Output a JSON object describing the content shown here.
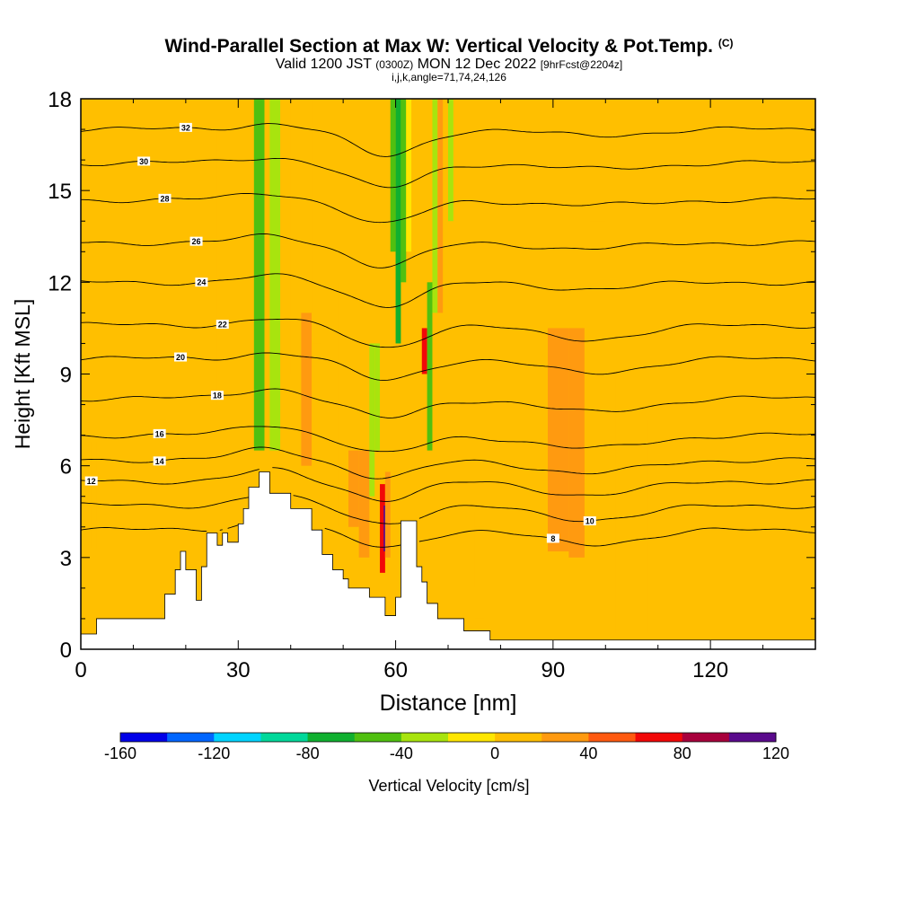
{
  "title": {
    "main": "Wind-Parallel Section at Max W: Vertical Velocity & Pot.Temp.",
    "copyright": "(C)",
    "valid_prefix": "Valid 1200 JST",
    "valid_utc": "(0300Z)",
    "valid_date": "MON 12 Dec 2022",
    "forecast": "[9hrFcst@2204z]",
    "indices": "i,j,k,angle=71,74,24,126"
  },
  "chart_data": {
    "type": "heatmap",
    "xlabel": "Distance [nm]",
    "ylabel": "Height [Kft MSL]",
    "xlim": [
      0,
      140
    ],
    "ylim": [
      0,
      18
    ],
    "x_ticks": [
      "0",
      "30",
      "60",
      "90",
      "120"
    ],
    "y_ticks": [
      "0",
      "3",
      "6",
      "9",
      "12",
      "15",
      "18"
    ],
    "colorbar": {
      "label": "Vertical Velocity [cm/s]",
      "tick_labels": [
        "-160",
        "-120",
        "-80",
        "-40",
        "0",
        "40",
        "80",
        "120"
      ],
      "tick_values": [
        -160,
        -120,
        -80,
        -40,
        0,
        40,
        80,
        120
      ],
      "min": -160,
      "max": 120,
      "colors": [
        "#0000e8",
        "#0066ff",
        "#00d4ff",
        "#00d89a",
        "#10b030",
        "#50c010",
        "#a8e40e",
        "#ffe600",
        "#ffbf00",
        "#ff9a10",
        "#ff5a10",
        "#f20808",
        "#a8003c",
        "#5a0a8c"
      ]
    },
    "background_value": 0,
    "velocity_cells": [
      {
        "x": [
          2,
          3
        ],
        "y": [
          3.3,
          6.8
        ],
        "value": 15
      },
      {
        "x": [
          10,
          13
        ],
        "y": [
          1,
          18
        ],
        "value": 15
      },
      {
        "x": [
          19,
          23
        ],
        "y": [
          5.5,
          18
        ],
        "value": 15
      },
      {
        "x": [
          24,
          26
        ],
        "y": [
          8,
          17
        ],
        "value": 15
      },
      {
        "x": [
          31,
          33
        ],
        "y": [
          6.5,
          18
        ],
        "value": 15
      },
      {
        "x": [
          33,
          35
        ],
        "y": [
          6.5,
          18
        ],
        "value": -45
      },
      {
        "x": [
          36,
          38
        ],
        "y": [
          6.5,
          18
        ],
        "value": -35
      },
      {
        "x": [
          38,
          40
        ],
        "y": [
          9,
          18
        ],
        "value": 15
      },
      {
        "x": [
          42,
          44
        ],
        "y": [
          6,
          11
        ],
        "value": 30
      },
      {
        "x": [
          44,
          46
        ],
        "y": [
          10,
          18
        ],
        "value": 15
      },
      {
        "x": [
          49,
          51
        ],
        "y": [
          4,
          12
        ],
        "value": 15
      },
      {
        "x": [
          51,
          53
        ],
        "y": [
          4,
          6.5
        ],
        "value": 30
      },
      {
        "x": [
          53,
          55
        ],
        "y": [
          3,
          6.5
        ],
        "value": 35
      },
      {
        "x": [
          55,
          56
        ],
        "y": [
          5,
          10
        ],
        "value": -30
      },
      {
        "x": [
          56,
          57
        ],
        "y": [
          6.5,
          10
        ],
        "value": -40
      },
      {
        "x": [
          57,
          58
        ],
        "y": [
          2.5,
          5.4
        ],
        "value": 75
      },
      {
        "x": [
          57.7,
          58.3
        ],
        "y": [
          3.2,
          4.7
        ],
        "value": 100
      },
      {
        "x": [
          58,
          59
        ],
        "y": [
          3,
          5.8
        ],
        "value": 30
      },
      {
        "x": [
          60,
          61
        ],
        "y": [
          10,
          18
        ],
        "value": -80
      },
      {
        "x": [
          59,
          60
        ],
        "y": [
          13,
          18
        ],
        "value": -45
      },
      {
        "x": [
          61,
          62
        ],
        "y": [
          12,
          18
        ],
        "value": -45
      },
      {
        "x": [
          62,
          63
        ],
        "y": [
          13,
          18
        ],
        "value": -20
      },
      {
        "x": [
          65,
          66
        ],
        "y": [
          9,
          10.5
        ],
        "value": 60
      },
      {
        "x": [
          66,
          67
        ],
        "y": [
          6.5,
          12
        ],
        "value": -50
      },
      {
        "x": [
          67,
          68
        ],
        "y": [
          11,
          18
        ],
        "value": -40
      },
      {
        "x": [
          68,
          69
        ],
        "y": [
          11,
          18
        ],
        "value": 25
      },
      {
        "x": [
          70,
          71
        ],
        "y": [
          14,
          18
        ],
        "value": -30
      },
      {
        "x": [
          73,
          75
        ],
        "y": [
          2,
          4.5
        ],
        "value": 15
      },
      {
        "x": [
          75,
          77
        ],
        "y": [
          1,
          4
        ],
        "value": 15
      },
      {
        "x": [
          89,
          93
        ],
        "y": [
          3.2,
          10.5
        ],
        "value": 20
      },
      {
        "x": [
          93,
          96
        ],
        "y": [
          3,
          10.5
        ],
        "value": 25
      },
      {
        "x": [
          96,
          99
        ],
        "y": [
          6.5,
          11
        ],
        "value": 15
      },
      {
        "x": [
          97,
          100
        ],
        "y": [
          14,
          18
        ],
        "value": 15
      },
      {
        "x": [
          102,
          104
        ],
        "y": [
          0.5,
          9
        ],
        "value": 15
      },
      {
        "x": [
          106,
          108
        ],
        "y": [
          0.5,
          7.5
        ],
        "value": 15
      },
      {
        "x": [
          110,
          113
        ],
        "y": [
          0.5,
          6
        ],
        "value": 15
      },
      {
        "x": [
          116,
          118
        ],
        "y": [
          0.5,
          8
        ],
        "value": 15
      },
      {
        "x": [
          122,
          125
        ],
        "y": [
          0.5,
          6
        ],
        "value": 15
      },
      {
        "x": [
          128,
          130
        ],
        "y": [
          6.5,
          10
        ],
        "value": 15
      }
    ],
    "theta_contours": [
      {
        "level": 8,
        "height": 3.9,
        "label_x": 90
      },
      {
        "level": 10,
        "height": 4.7,
        "label_x": 97
      },
      {
        "level": 12,
        "height": 5.5,
        "label_x": 2
      },
      {
        "level": 14,
        "height": 6.2,
        "label_x": 15
      },
      {
        "level": 16,
        "height": 7.0,
        "label_x": 15
      },
      {
        "level": 18,
        "height": 8.2,
        "label_x": 26
      },
      {
        "level": 20,
        "height": 9.5,
        "label_x": 19
      },
      {
        "level": 22,
        "height": 10.6,
        "label_x": 27
      },
      {
        "level": 24,
        "height": 12.0,
        "label_x": 23
      },
      {
        "level": 26,
        "height": 13.3,
        "label_x": 22
      },
      {
        "level": 28,
        "height": 14.7,
        "label_x": 16
      },
      {
        "level": 30,
        "height": 15.9,
        "label_x": 12
      },
      {
        "level": 32,
        "height": 17.0,
        "label_x": 20
      }
    ],
    "terrain": [
      [
        0,
        0.5
      ],
      [
        3,
        0.5
      ],
      [
        3,
        1
      ],
      [
        16,
        1
      ],
      [
        16,
        1.8
      ],
      [
        18,
        1.8
      ],
      [
        18,
        2.6
      ],
      [
        19,
        2.6
      ],
      [
        19,
        3.2
      ],
      [
        20,
        3.2
      ],
      [
        20,
        2.6
      ],
      [
        22,
        2.6
      ],
      [
        22,
        1.6
      ],
      [
        23,
        1.6
      ],
      [
        23,
        2.7
      ],
      [
        24,
        2.7
      ],
      [
        24,
        3.8
      ],
      [
        26,
        3.8
      ],
      [
        26,
        3.4
      ],
      [
        27,
        3.4
      ],
      [
        27,
        3.8
      ],
      [
        28,
        3.8
      ],
      [
        28,
        3.5
      ],
      [
        30,
        3.5
      ],
      [
        30,
        4.1
      ],
      [
        31,
        4.1
      ],
      [
        31,
        4.6
      ],
      [
        32,
        4.6
      ],
      [
        32,
        5.3
      ],
      [
        34,
        5.3
      ],
      [
        34,
        5.8
      ],
      [
        36,
        5.8
      ],
      [
        36,
        5.1
      ],
      [
        40,
        5.1
      ],
      [
        40,
        4.6
      ],
      [
        44,
        4.6
      ],
      [
        44,
        3.9
      ],
      [
        46,
        3.9
      ],
      [
        46,
        3.1
      ],
      [
        48,
        3.1
      ],
      [
        48,
        2.6
      ],
      [
        50,
        2.6
      ],
      [
        50,
        2.3
      ],
      [
        51,
        2.3
      ],
      [
        51,
        2.0
      ],
      [
        55,
        2.0
      ],
      [
        55,
        1.7
      ],
      [
        58,
        1.7
      ],
      [
        58,
        1.1
      ],
      [
        60,
        1.1
      ],
      [
        60,
        1.7
      ],
      [
        61,
        1.7
      ],
      [
        61,
        4.2
      ],
      [
        64,
        4.2
      ],
      [
        64,
        2.7
      ],
      [
        65,
        2.7
      ],
      [
        65,
        2.2
      ],
      [
        66,
        2.2
      ],
      [
        66,
        1.5
      ],
      [
        68,
        1.5
      ],
      [
        68,
        1.0
      ],
      [
        73,
        1.0
      ],
      [
        73,
        0.6
      ],
      [
        78,
        0.6
      ],
      [
        78,
        0.3
      ],
      [
        140,
        0.3
      ],
      [
        140,
        0
      ]
    ]
  }
}
